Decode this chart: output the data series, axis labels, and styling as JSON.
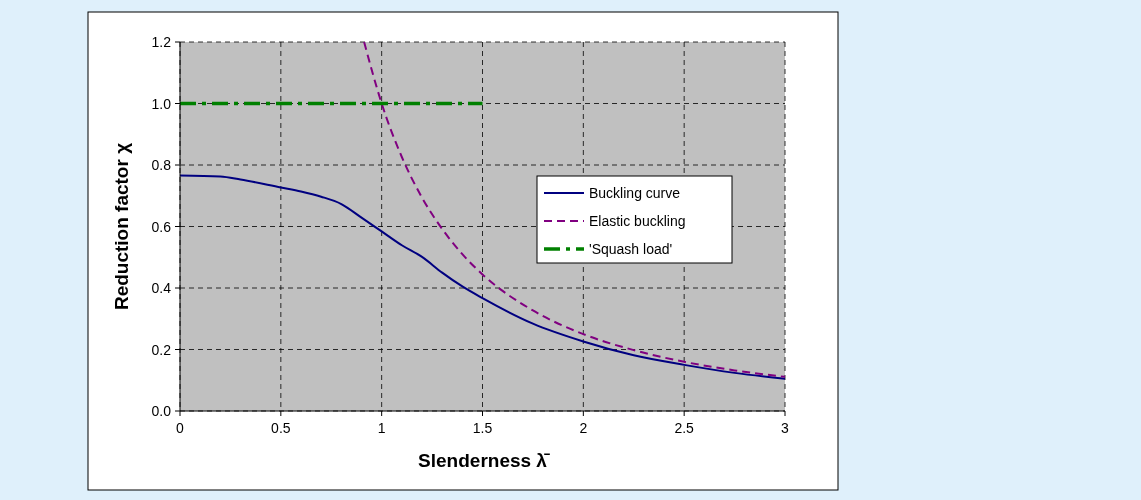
{
  "chart_data": {
    "type": "line",
    "xlabel": "Slenderness λ̄",
    "ylabel": "Reduction factor χ",
    "xlim": [
      0,
      3
    ],
    "xticks": [
      0,
      0.5,
      1,
      1.5,
      2,
      2.5,
      3
    ],
    "ylim": [
      0,
      1.2
    ],
    "yticks": [
      {
        "value": 0,
        "label": "0.0"
      },
      {
        "value": 0.2,
        "label": "0.2"
      },
      {
        "value": 0.4,
        "label": "0.4"
      },
      {
        "value": 0.6,
        "label": "0.6"
      },
      {
        "value": 0.8,
        "label": "0.8"
      },
      {
        "value": 1,
        "label": "1.0"
      },
      {
        "value": 1.2,
        "label": "1.2"
      }
    ],
    "grid": true,
    "legend": "right",
    "series": [
      {
        "name": "Buckling curve",
        "color": "#000080",
        "line_style": "solid",
        "x": [
          0,
          0.2,
          0.3,
          0.5,
          0.6,
          0.7,
          0.8,
          0.9,
          1.0,
          1.1,
          1.2,
          1.3,
          1.4,
          1.5,
          1.75,
          2.0,
          2.25,
          2.5,
          2.75,
          3.0
        ],
        "values": [
          0.766,
          0.763,
          0.753,
          0.727,
          0.714,
          0.697,
          0.673,
          0.629,
          0.584,
          0.539,
          0.501,
          0.45,
          0.405,
          0.367,
          0.284,
          0.226,
          0.181,
          0.15,
          0.124,
          0.105
        ]
      },
      {
        "name": "Elastic buckling",
        "color": "#800080",
        "line_style": "dashed",
        "x": [
          0.913,
          1.0,
          1.1,
          1.2,
          1.3,
          1.4,
          1.5,
          1.75,
          2.0,
          2.25,
          2.5,
          2.75,
          3.0
        ],
        "values": [
          1.2,
          1.0,
          0.826,
          0.694,
          0.592,
          0.51,
          0.444,
          0.327,
          0.25,
          0.198,
          0.16,
          0.132,
          0.111
        ]
      },
      {
        "name": "'Squash load'",
        "color": "#008000",
        "line_style": "dashed",
        "x": [
          0,
          1.5
        ],
        "values": [
          1.0,
          1.0
        ]
      }
    ]
  }
}
